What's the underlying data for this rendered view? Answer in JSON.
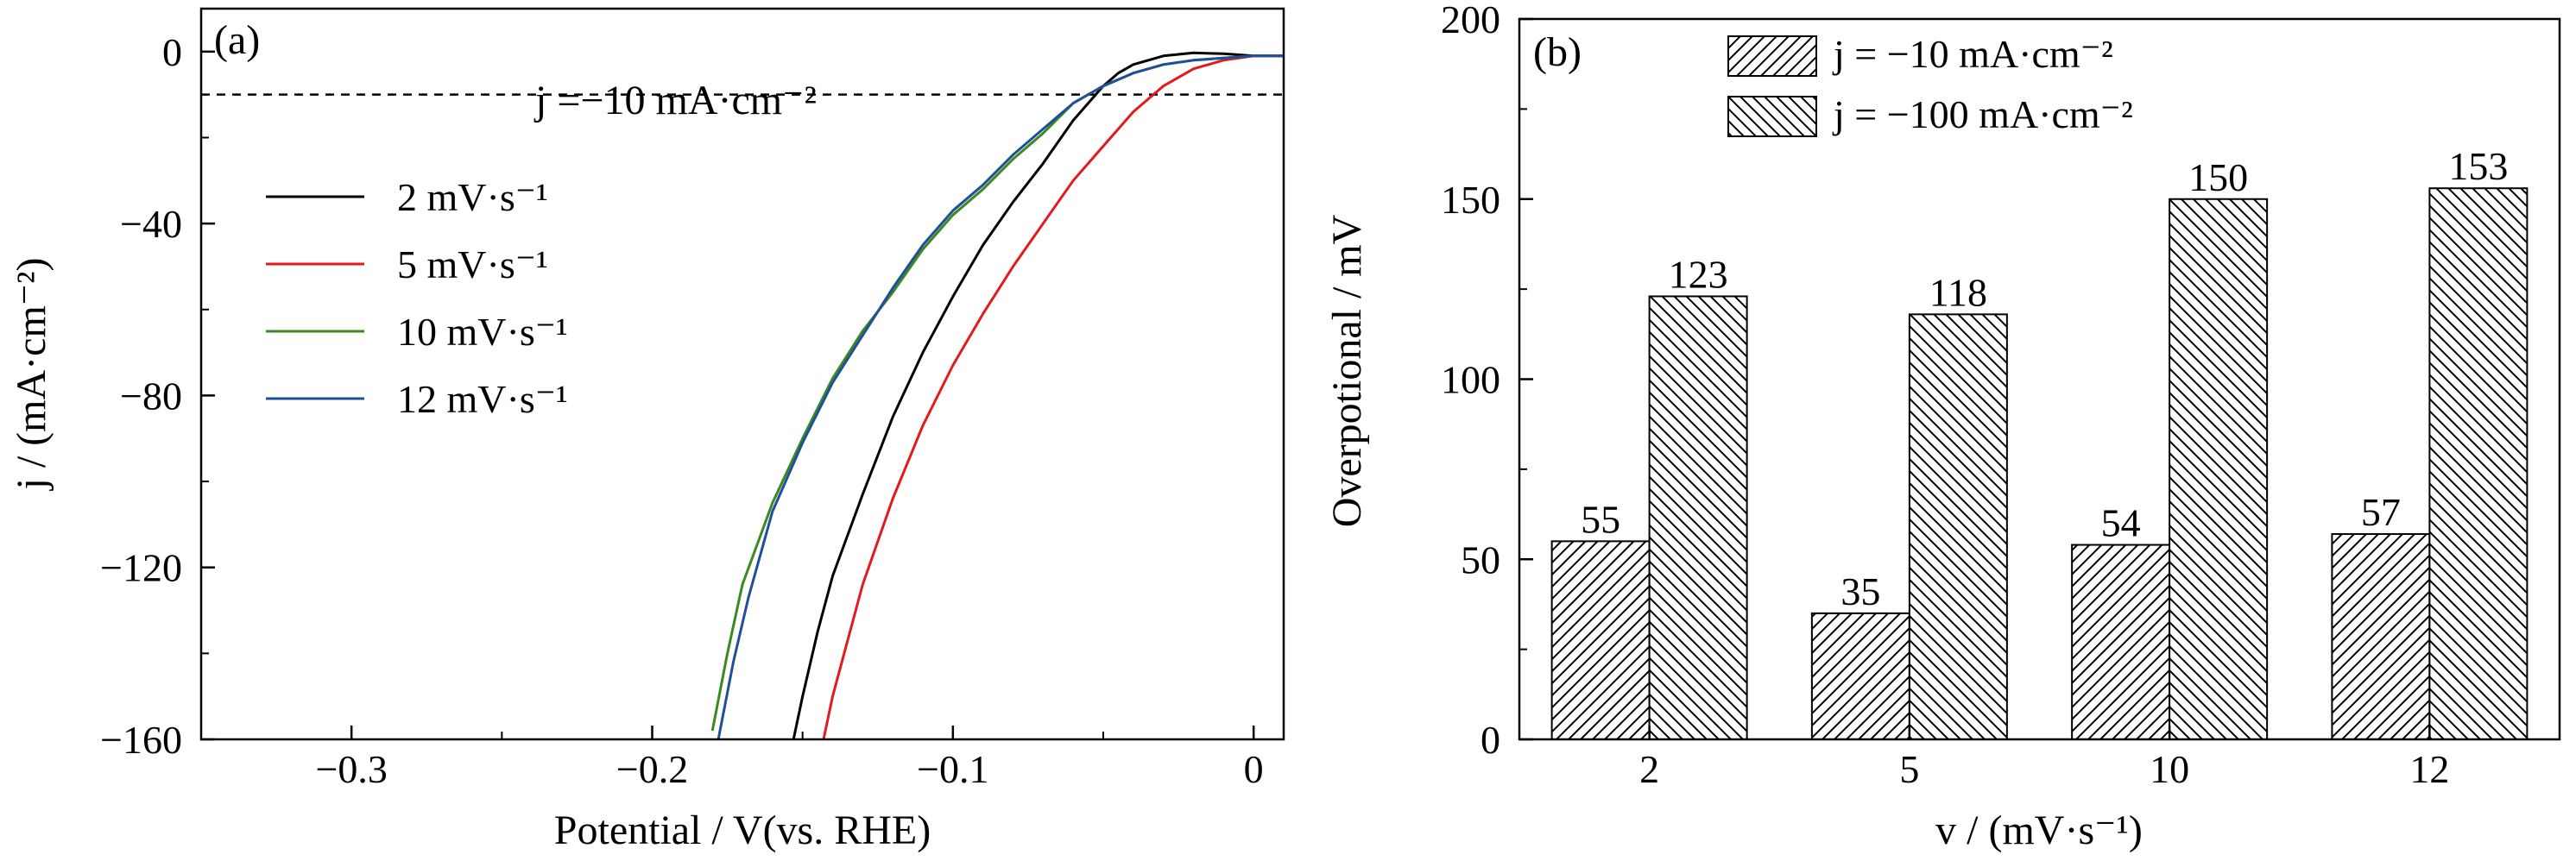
{
  "chart_data": [
    {
      "panel": "(a)",
      "type": "line",
      "xlabel": "Potential / V(vs. RHE)",
      "ylabel": "j / (mA·cm⁻²)",
      "xlim": [
        -0.35,
        0.01
      ],
      "ylim": [
        -160,
        10
      ],
      "x_ticks": [
        -0.3,
        -0.2,
        -0.1,
        0
      ],
      "x_tick_labels": [
        "−0.3",
        "−0.2",
        "−0.1",
        "0"
      ],
      "y_ticks": [
        0,
        -40,
        -80,
        -120,
        -160
      ],
      "y_tick_labels": [
        "0",
        "−40",
        "−80",
        "−120",
        "−160"
      ],
      "reference_line": {
        "y": -10,
        "style": "dashed",
        "label": "j =−10 mA·cm⁻²"
      },
      "series": [
        {
          "name": "2 mV·s⁻¹",
          "color": "#000000",
          "x": [
            -0.153,
            -0.15,
            -0.145,
            -0.14,
            -0.13,
            -0.12,
            -0.11,
            -0.1,
            -0.09,
            -0.08,
            -0.07,
            -0.06,
            -0.05,
            -0.045,
            -0.04,
            -0.03,
            -0.02,
            -0.01,
            0.0,
            0.01
          ],
          "y": [
            -160,
            -150,
            -135,
            -122,
            -103,
            -85,
            -70,
            -57,
            -45,
            -35,
            -26,
            -16,
            -8,
            -5,
            -3,
            -1,
            -0.3,
            -0.5,
            -1,
            -1
          ]
        },
        {
          "name": "5 mV·s⁻¹",
          "color": "#e31a1c",
          "x": [
            -0.143,
            -0.14,
            -0.135,
            -0.13,
            -0.12,
            -0.11,
            -0.1,
            -0.09,
            -0.08,
            -0.07,
            -0.06,
            -0.05,
            -0.04,
            -0.03,
            -0.02,
            -0.01,
            0.0,
            0.01
          ],
          "y": [
            -160,
            -150,
            -137,
            -124,
            -104,
            -87,
            -73,
            -61,
            -50,
            -40,
            -30,
            -22,
            -14,
            -8,
            -4,
            -2,
            -1,
            -1
          ]
        },
        {
          "name": "10 mV·s⁻¹",
          "color": "#3a8a1f",
          "x": [
            -0.18,
            -0.175,
            -0.17,
            -0.16,
            -0.15,
            -0.14,
            -0.13,
            -0.12,
            -0.11,
            -0.1,
            -0.09,
            -0.08,
            -0.07,
            -0.06,
            -0.05,
            -0.04,
            -0.03,
            -0.02,
            -0.01,
            0.0,
            0.01
          ],
          "y": [
            -158,
            -140,
            -124,
            -105,
            -90,
            -76,
            -65,
            -56,
            -46,
            -38,
            -32,
            -25,
            -19,
            -12,
            -8,
            -5,
            -3,
            -2,
            -1.5,
            -1,
            -1
          ]
        },
        {
          "name": "12 mV·s⁻¹",
          "color": "#1f4e9c",
          "x": [
            -0.178,
            -0.173,
            -0.168,
            -0.16,
            -0.15,
            -0.14,
            -0.13,
            -0.12,
            -0.11,
            -0.1,
            -0.09,
            -0.08,
            -0.07,
            -0.06,
            -0.05,
            -0.04,
            -0.03,
            -0.02,
            -0.01,
            0.0,
            0.01
          ],
          "y": [
            -160,
            -142,
            -127,
            -107,
            -91,
            -77,
            -66,
            -55,
            -45,
            -37,
            -31,
            -24,
            -18,
            -12,
            -8,
            -5,
            -3,
            -2,
            -1.5,
            -1,
            -1
          ]
        }
      ]
    },
    {
      "panel": "(b)",
      "type": "bar",
      "xlabel": "v / (mV·s⁻¹)",
      "ylabel": "Overpotional / mV",
      "categories": [
        "2",
        "5",
        "10",
        "12"
      ],
      "ylim": [
        0,
        200
      ],
      "y_ticks": [
        0,
        50,
        100,
        150,
        200
      ],
      "y_tick_labels": [
        "0",
        "50",
        "100",
        "150",
        "200"
      ],
      "series": [
        {
          "name": "j = −10 mA·cm⁻²",
          "pattern": "hatch-forward",
          "values": [
            55,
            35,
            54,
            57
          ],
          "labels": [
            "55",
            "35",
            "54",
            "57"
          ]
        },
        {
          "name": "j = −100 mA·cm⁻²",
          "pattern": "hatch-backward",
          "values": [
            123,
            118,
            150,
            153
          ],
          "labels": [
            "123",
            "118",
            "150",
            "153"
          ]
        }
      ]
    }
  ]
}
